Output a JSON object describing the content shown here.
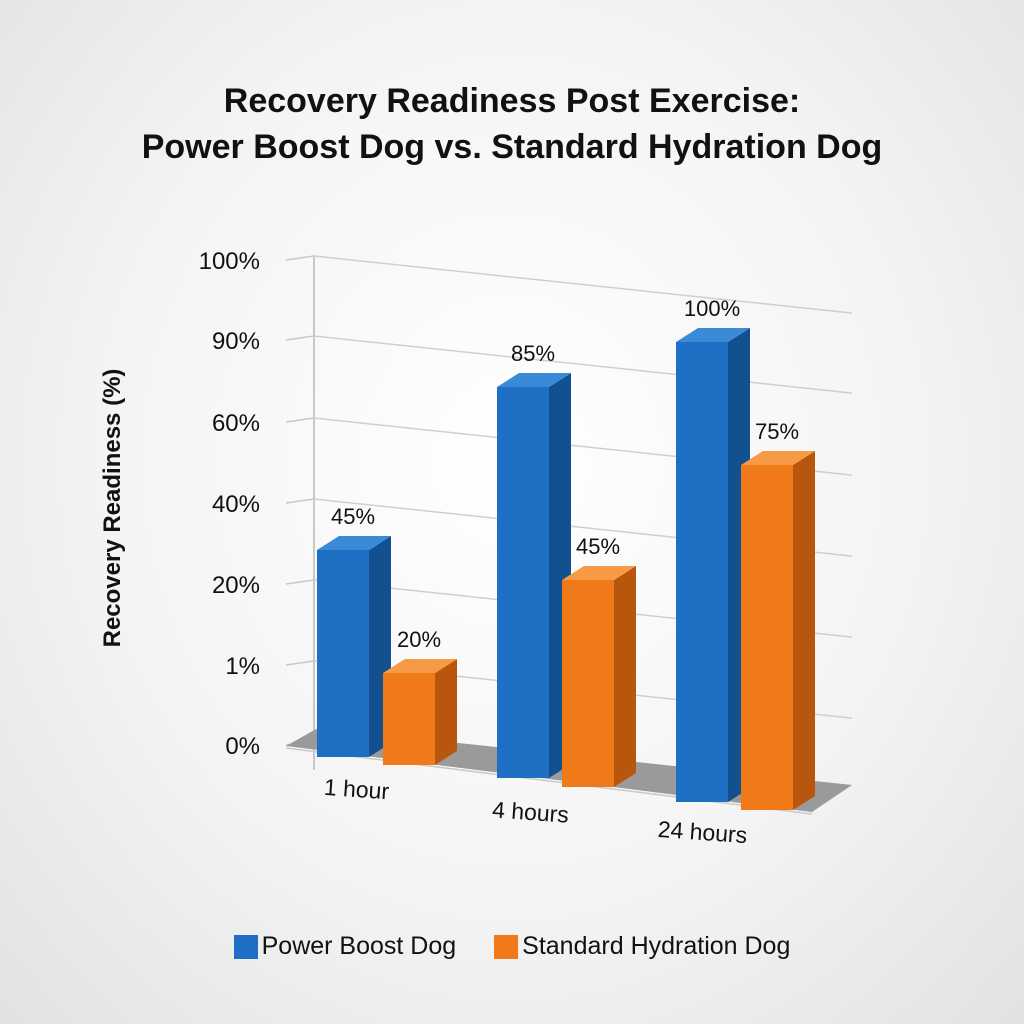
{
  "chart_data": {
    "type": "bar",
    "title_line1": "Recovery Readiness Post Exercise:",
    "title_line2": "Power Boost Dog vs. Standard Hydration Dog",
    "ylabel": "Recovery Readiness (%)",
    "xlabel": "",
    "yticks": [
      "100%",
      "90%",
      "60%",
      "40%",
      "20%",
      "1%",
      "0%"
    ],
    "categories": [
      "1 hour",
      "4 hours",
      "24 hours"
    ],
    "series": [
      {
        "name": "Power Boost Dog",
        "color": "#1f6fc4",
        "values": [
          45,
          85,
          100
        ],
        "labels": [
          "45%",
          "85%",
          "100%"
        ]
      },
      {
        "name": "Standard Hydration Dog",
        "color": "#f07a1a",
        "values": [
          20,
          45,
          75
        ],
        "labels": [
          "20%",
          "45%",
          "75%"
        ]
      }
    ],
    "ylim": [
      0,
      100
    ],
    "grid": true,
    "legend": "bottom"
  }
}
